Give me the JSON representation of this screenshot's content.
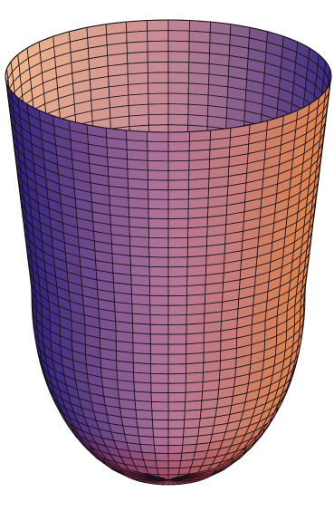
{
  "figure": {
    "kind": "3d-surface-of-revolution",
    "shape": "open vessel / cup",
    "mesh": {
      "angular_segments": 48,
      "vertical_rings": 40
    },
    "colors": {
      "background": "#ffffff",
      "mesh_line": "#1a1018",
      "shade_dark": "#2a1f7a",
      "shade_mid": "#a86a9e",
      "shade_light": "#f3b98a",
      "shade_warm": "#e8883f",
      "shade_bottom": "#9a2a3a"
    }
  }
}
